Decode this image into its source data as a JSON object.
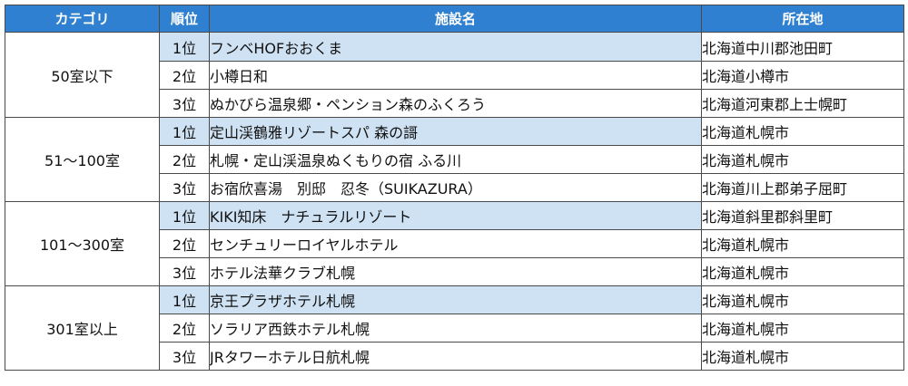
{
  "headers": {
    "category": "カテゴリ",
    "rank": "順位",
    "facility": "施設名",
    "location": "所在地"
  },
  "groups": [
    {
      "category": "50室以下",
      "rows": [
        {
          "rank": "1位",
          "facility": "フンベHOFおおくま",
          "location": "北海道中川郡池田町"
        },
        {
          "rank": "2位",
          "facility": "小樽日和",
          "location": "北海道小樽市"
        },
        {
          "rank": "3位",
          "facility": "ぬかびら温泉郷・ペンション森のふくろう",
          "location": "北海道河東郡上士幌町"
        }
      ]
    },
    {
      "category": "51～100室",
      "rows": [
        {
          "rank": "1位",
          "facility": "定山渓鶴雅リゾートスパ 森の謌",
          "location": "北海道札幌市"
        },
        {
          "rank": "2位",
          "facility": "札幌・定山渓温泉ぬくもりの宿 ふる川",
          "location": "北海道札幌市"
        },
        {
          "rank": "3位",
          "facility": "お宿欣喜湯　別邸　忍冬（SUIKAZURA）",
          "location": "北海道川上郡弟子屈町"
        }
      ]
    },
    {
      "category": "101～300室",
      "rows": [
        {
          "rank": "1位",
          "facility": "KIKI知床　ナチュラルリゾート",
          "location": "北海道斜里郡斜里町"
        },
        {
          "rank": "2位",
          "facility": "センチュリーロイヤルホテル",
          "location": "北海道札幌市"
        },
        {
          "rank": "3位",
          "facility": "ホテル法華クラブ札幌",
          "location": "北海道札幌市"
        }
      ]
    },
    {
      "category": "301室以上",
      "rows": [
        {
          "rank": "1位",
          "facility": "京王プラザホテル札幌",
          "location": "北海道札幌市"
        },
        {
          "rank": "2位",
          "facility": "ソラリア西鉄ホテル札幌",
          "location": "北海道札幌市"
        },
        {
          "rank": "3位",
          "facility": "JRタワーホテル日航札幌",
          "location": "北海道札幌市"
        }
      ]
    }
  ]
}
